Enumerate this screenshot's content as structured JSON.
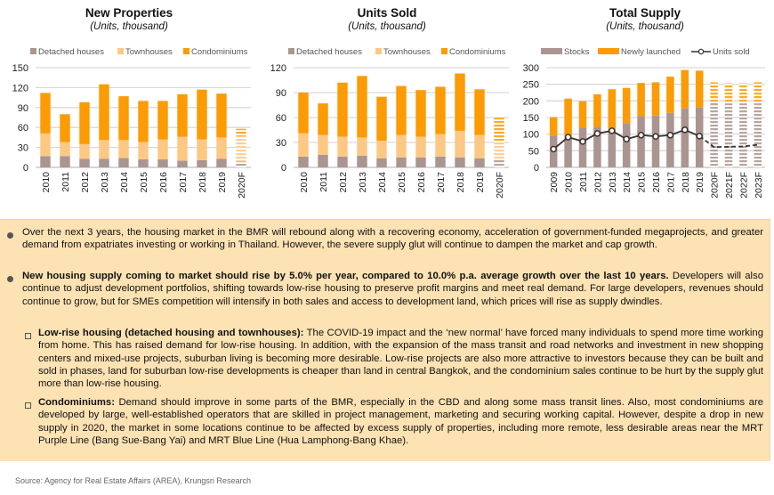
{
  "colors": {
    "detached": "#ab9590",
    "townhouses": "#fdc884",
    "condominiums": "#fc9b04",
    "stocks": "#ab9590",
    "newly_launched": "#fc9b04",
    "line": "#3a322c",
    "grid": "#d9d9d9",
    "box_bg": "#fde2b3"
  },
  "chart_data": [
    {
      "type": "bar",
      "stacked": true,
      "title": "New Properties",
      "subtitle": "(Units, thousand)",
      "categories": [
        "2010",
        "2011",
        "2012",
        "2013",
        "2014",
        "2015",
        "2016",
        "2017",
        "2018",
        "2019",
        "2020F"
      ],
      "forecast_from": "2020F",
      "series": [
        {
          "name": "Detached houses",
          "values": [
            17,
            17,
            13,
            13,
            14,
            12,
            12,
            10,
            11,
            13,
            9
          ]
        },
        {
          "name": "Townhouses",
          "values": [
            34,
            21,
            22,
            28,
            27,
            26,
            30,
            36,
            31,
            32,
            38
          ]
        },
        {
          "name": "Condominiums",
          "values": [
            61,
            42,
            63,
            84,
            66,
            62,
            58,
            64,
            75,
            66,
            11
          ]
        }
      ],
      "legend": "top",
      "ylim": [
        0,
        150
      ],
      "yticks": [
        "0",
        "30",
        "60",
        "90",
        "120",
        "150"
      ],
      "grid": true
    },
    {
      "type": "bar",
      "stacked": true,
      "title": "Units Sold",
      "subtitle": "(Units, thousand)",
      "categories": [
        "2010",
        "2011",
        "2012",
        "2013",
        "2014",
        "2015",
        "2016",
        "2017",
        "2018",
        "2019",
        "2020F"
      ],
      "forecast_from": "2020F",
      "series": [
        {
          "name": "Detached houses",
          "values": [
            13,
            15,
            13,
            14,
            11,
            12,
            12,
            13,
            12,
            11,
            9
          ]
        },
        {
          "name": "Townhouses",
          "values": [
            28,
            24,
            24,
            22,
            21,
            27,
            25,
            27,
            32,
            28,
            23
          ]
        },
        {
          "name": "Condominiums",
          "values": [
            49,
            38,
            65,
            74,
            53,
            59,
            56,
            57,
            69,
            55,
            29
          ]
        }
      ],
      "legend": "top",
      "ylim": [
        0,
        120
      ],
      "yticks": [
        "0",
        "30",
        "60",
        "90",
        "120"
      ],
      "grid": true
    },
    {
      "type": "bar",
      "stacked": true,
      "title": "Total Supply",
      "subtitle": "(Units, thousand)",
      "categories": [
        "2009",
        "2010",
        "2011",
        "2012",
        "2013",
        "2014",
        "2015",
        "2016",
        "2017",
        "2018",
        "2019",
        "2020F",
        "2021F",
        "2022F",
        "2023F"
      ],
      "forecast_from": "2020F",
      "series": [
        {
          "name": "Stocks",
          "values": [
            96,
            96,
            119,
            122,
            116,
            133,
            154,
            156,
            164,
            177,
            180,
            196,
            192,
            192,
            190
          ]
        },
        {
          "name": "Newly launched",
          "values": [
            55,
            111,
            80,
            98,
            119,
            106,
            100,
            100,
            109,
            116,
            111,
            60,
            61,
            61,
            66
          ]
        }
      ],
      "line_series": {
        "name": "Units sold",
        "values": [
          55,
          91,
          78,
          102,
          110,
          85,
          97,
          93,
          97,
          113,
          94,
          61,
          62,
          63,
          68
        ],
        "dashed_from": "2019"
      },
      "legend": "top",
      "ylim": [
        0,
        300
      ],
      "yticks": [
        "0",
        "50",
        "100",
        "150",
        "200",
        "250",
        "300"
      ],
      "grid": true
    }
  ],
  "text": {
    "p1": "Over the next 3 years, the housing market in the BMR will rebound along with a recovering economy, acceleration of government-funded megaprojects, and greater demand from expatriates investing or working in Thailand. However, the severe supply glut will continue to dampen the market and cap growth.",
    "p2_bold": "New housing supply coming to market should rise by 5.0% per year, compared to 10.0% p.a. average growth over the last 10 years.",
    "p2_rest": " Developers will also continue to adjust development portfolios, shifting towards low-rise housing to preserve profit margins and meet real demand. For large developers, revenues should continue to grow, but for SMEs competition will intensify in both sales and access to development land, which prices will rise as supply dwindles.",
    "s1_bold": "Low-rise housing (detached housing and townhouses):",
    "s1_rest": " The COVID-19 impact and the ‘new normal’ have forced many individuals to spend more time working from home. This has raised demand for low-rise housing. In addition, with the expansion of the mass transit and road networks and investment in new shopping centers and mixed-use projects, suburban living is becoming more desirable. Low-rise projects are also more attractive to investors because they can be built and sold in phases, land for suburban low-rise developments is cheaper than land in central Bangkok, and the condominium sales continue to be hurt by the supply glut more than low-rise housing.",
    "s2_bold": "Condominiums:",
    "s2_rest": " Demand should improve in some parts of the BMR, especially in the CBD and along some mass transit lines. Also, most condominiums are developed by large, well-established operators that are skilled in project management, marketing and securing working capital. However, despite a drop in new supply in 2020, the market in some locations continue to be affected by excess supply of properties, including more remote, less desirable areas near the MRT Purple Line (Bang Sue-Bang Yai) and MRT Blue Line (Hua Lamphong-Bang Khae).",
    "source": "Source: Agency for Real Estate Affairs (AREA), Krungsri Research"
  }
}
